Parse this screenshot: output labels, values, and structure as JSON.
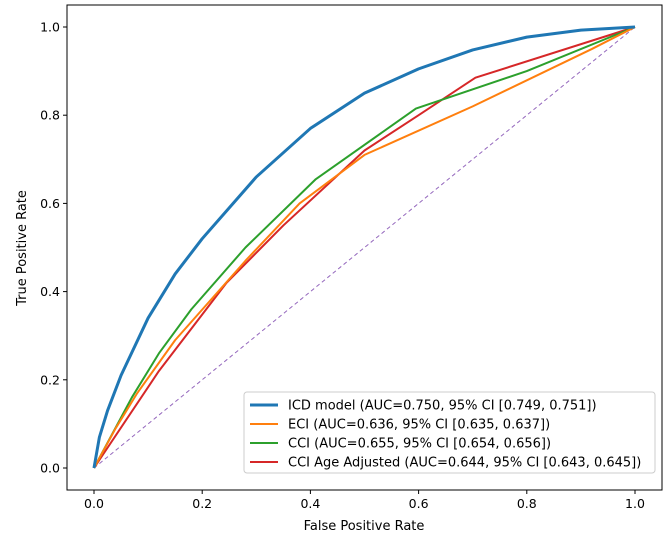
{
  "chart_data": {
    "type": "line",
    "title": "",
    "xlabel": "False Positive Rate",
    "ylabel": "True Positive Rate",
    "xlim": [
      -0.05,
      1.05
    ],
    "ylim": [
      -0.05,
      1.05
    ],
    "xticks": [
      "0.0",
      "0.2",
      "0.4",
      "0.6",
      "0.8",
      "1.0"
    ],
    "yticks": [
      "0.0",
      "0.2",
      "0.4",
      "0.6",
      "0.8",
      "1.0"
    ],
    "grid": false,
    "legend_position": "lower-right",
    "series": [
      {
        "name": "ICD model (AUC=0.750, 95% CI [0.749, 0.751])",
        "color": "#1f77b4",
        "width": 3,
        "x": [
          0,
          0.01,
          0.025,
          0.05,
          0.1,
          0.15,
          0.2,
          0.3,
          0.4,
          0.5,
          0.6,
          0.7,
          0.8,
          0.9,
          1.0
        ],
        "y": [
          0,
          0.07,
          0.13,
          0.21,
          0.34,
          0.44,
          0.52,
          0.66,
          0.77,
          0.85,
          0.905,
          0.948,
          0.977,
          0.993,
          1.0
        ]
      },
      {
        "name": "ECI (AUC=0.636, 95% CI [0.635, 0.637])",
        "color": "#ff7f0e",
        "width": 2,
        "x": [
          0,
          0.04,
          0.08,
          0.15,
          0.28,
          0.38,
          0.5,
          0.7,
          0.92,
          1.0
        ],
        "y": [
          0,
          0.09,
          0.17,
          0.29,
          0.47,
          0.6,
          0.71,
          0.82,
          0.95,
          1.0
        ]
      },
      {
        "name": "CCI (AUC=0.655, 95% CI [0.654, 0.656])",
        "color": "#2ca02c",
        "width": 2,
        "x": [
          0,
          0.07,
          0.12,
          0.18,
          0.28,
          0.41,
          0.595,
          0.8,
          1.0
        ],
        "y": [
          0,
          0.16,
          0.26,
          0.36,
          0.5,
          0.655,
          0.815,
          0.9,
          1.0
        ]
      },
      {
        "name": "CCI Age Adjusted (AUC=0.644, 95% CI [0.643, 0.645])",
        "color": "#d62728",
        "width": 2,
        "x": [
          0,
          0.06,
          0.12,
          0.245,
          0.35,
          0.5,
          0.6,
          0.705,
          1.0
        ],
        "y": [
          0,
          0.11,
          0.22,
          0.42,
          0.55,
          0.72,
          0.8,
          0.885,
          1.0
        ]
      },
      {
        "name": "",
        "color": "#9467bd",
        "width": 1,
        "dashed": true,
        "x": [
          0,
          1
        ],
        "y": [
          0,
          1
        ]
      }
    ]
  }
}
